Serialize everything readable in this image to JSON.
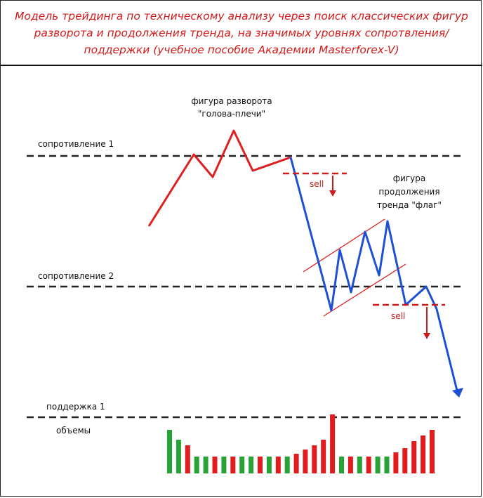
{
  "header": {
    "title": "Модель трейдинга по техническому анализу через поиск классических фигур разворота и продолжения тренда, на значимых уровнях сопротвления/поддержки (учебное пособие Академии Masterforex-V)"
  },
  "labels": {
    "resistance1": "сопротивление 1",
    "resistance2": "сопротивление 2",
    "support1": "поддержка 1",
    "volumes": "объемы",
    "head_shoulders_line1": "фигура разворота",
    "head_shoulders_line2": "\"голова-плечи\"",
    "flag_line1": "фигура",
    "flag_line2": "продолжения",
    "flag_line3": "тренда \"флаг\"",
    "sell1": "sell",
    "sell2": "sell"
  },
  "colors": {
    "up_trend": "#e02020",
    "down_trend": "#1f4fd6",
    "level_line": "#222222",
    "volume_green": "#27a335",
    "volume_red": "#e01c1c",
    "sell_marker": "#d11b1b"
  },
  "chart_data": {
    "type": "bar",
    "title": "объемы",
    "series": [
      {
        "name": "",
        "values": [
          62,
          48,
          40,
          24,
          24,
          24,
          24,
          24,
          24,
          24,
          24,
          24,
          24,
          24,
          28,
          34,
          40,
          48,
          84,
          24,
          24,
          24,
          24,
          24,
          24,
          30,
          36,
          46,
          54,
          62
        ]
      }
    ],
    "bar_colors": [
      "green",
      "green",
      "red",
      "green",
      "green",
      "red",
      "green",
      "red",
      "green",
      "green",
      "red",
      "green",
      "red",
      "green",
      "red",
      "red",
      "red",
      "red",
      "red",
      "green",
      "red",
      "green",
      "red",
      "green",
      "green",
      "red",
      "red",
      "red",
      "red",
      "red"
    ]
  }
}
